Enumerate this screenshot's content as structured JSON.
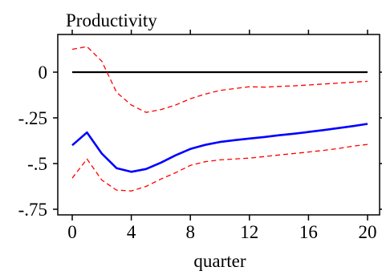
{
  "chart_data": {
    "type": "line",
    "title": "Productivity",
    "xlabel": "quarter",
    "ylabel": "",
    "xlim": [
      0,
      20
    ],
    "ylim": [
      -0.78,
      0.2
    ],
    "grid": false,
    "x_ticks": [
      0,
      4,
      8,
      12,
      16,
      20
    ],
    "x_tick_labels": [
      "0",
      "4",
      "8",
      "12",
      "16",
      "20"
    ],
    "y_ticks": [
      0,
      -0.25,
      -0.5,
      -0.75
    ],
    "y_tick_labels": [
      "0",
      "-.25",
      "-.5",
      "-.75"
    ],
    "reference_line": {
      "y": 0,
      "color": "#000000"
    },
    "x": [
      0,
      1,
      2,
      3,
      4,
      5,
      6,
      7,
      8,
      9,
      10,
      11,
      12,
      13,
      14,
      15,
      16,
      17,
      18,
      19,
      20
    ],
    "series": [
      {
        "role": "estimate",
        "color": "#0000ff",
        "style": "solid",
        "values": [
          -0.4,
          -0.33,
          -0.445,
          -0.525,
          -0.545,
          -0.53,
          -0.495,
          -0.455,
          -0.42,
          -0.398,
          -0.382,
          -0.372,
          -0.363,
          -0.355,
          -0.345,
          -0.337,
          -0.327,
          -0.317,
          -0.306,
          -0.295,
          -0.283
        ]
      },
      {
        "role": "upper-band",
        "color": "#ff0000",
        "style": "dashed",
        "values": [
          0.125,
          0.14,
          0.06,
          -0.11,
          -0.18,
          -0.22,
          -0.205,
          -0.18,
          -0.145,
          -0.12,
          -0.1,
          -0.09,
          -0.08,
          -0.082,
          -0.078,
          -0.075,
          -0.07,
          -0.065,
          -0.06,
          -0.055,
          -0.05
        ]
      },
      {
        "role": "lower-band",
        "color": "#ff0000",
        "style": "dashed",
        "values": [
          -0.58,
          -0.475,
          -0.59,
          -0.645,
          -0.65,
          -0.625,
          -0.585,
          -0.55,
          -0.51,
          -0.49,
          -0.48,
          -0.475,
          -0.47,
          -0.462,
          -0.453,
          -0.445,
          -0.437,
          -0.428,
          -0.418,
          -0.405,
          -0.395
        ]
      }
    ]
  }
}
